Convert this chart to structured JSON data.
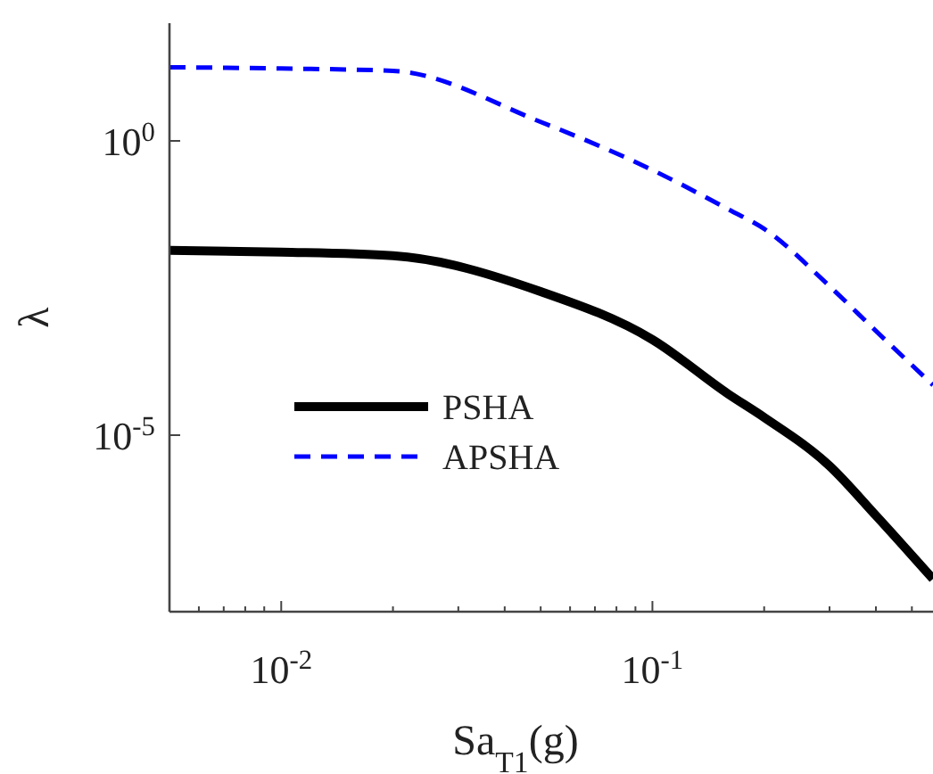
{
  "chart_data": {
    "type": "line",
    "xlabel": "Sa$_{T1}$(g)",
    "ylabel": "λ",
    "log": "xy",
    "xlim": [
      0.005,
      0.57
    ],
    "ylim": [
      1e-08,
      100
    ],
    "xticks": [
      {
        "value": 0.005,
        "label": null
      },
      {
        "value": 0.006,
        "label": null
      },
      {
        "value": 0.007,
        "label": null
      },
      {
        "value": 0.008,
        "label": null
      },
      {
        "value": 0.009,
        "label": null
      },
      {
        "value": 0.01,
        "label": "10$^{-2}$"
      },
      {
        "value": 0.02,
        "label": null
      },
      {
        "value": 0.03,
        "label": null
      },
      {
        "value": 0.04,
        "label": null
      },
      {
        "value": 0.05,
        "label": null
      },
      {
        "value": 0.06,
        "label": null
      },
      {
        "value": 0.07,
        "label": null
      },
      {
        "value": 0.08,
        "label": null
      },
      {
        "value": 0.09,
        "label": null
      },
      {
        "value": 0.1,
        "label": "10$^{-1}$"
      },
      {
        "value": 0.2,
        "label": null
      },
      {
        "value": 0.3,
        "label": null
      },
      {
        "value": 0.4,
        "label": null
      },
      {
        "value": 0.5,
        "label": null
      }
    ],
    "yticks": [
      {
        "value": 1,
        "label": "10$^{0}$"
      },
      {
        "value": 1e-05,
        "label": "10$^{-5}$"
      }
    ],
    "x": [
      0.005,
      0.01,
      0.02,
      0.05,
      0.1,
      0.16,
      0.2,
      0.3,
      0.4,
      0.57
    ],
    "series": [
      {
        "name": "PSHA",
        "color": "#000000",
        "line_style": "solid",
        "values": [
          0.0138,
          0.0129,
          0.0112,
          0.00275,
          0.00042,
          5e-05,
          2e-05,
          3e-06,
          4.3e-07,
          3.6e-08
        ]
      },
      {
        "name": "APSHA",
        "color": "#0000ff",
        "line_style": "dashed",
        "values": [
          17.8,
          17,
          15.5,
          2.1,
          0.32,
          0.069,
          0.032,
          0.0034,
          0.00059,
          7.1e-05
        ]
      }
    ],
    "legend": "bottom left",
    "grid": false
  }
}
